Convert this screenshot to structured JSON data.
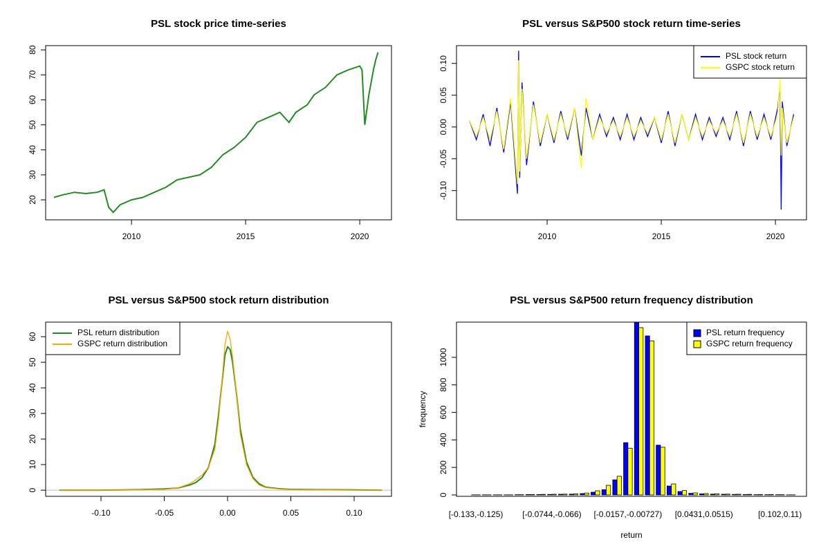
{
  "chart_data": [
    {
      "type": "line",
      "title": "PSL stock price time-series",
      "color": "#228b22",
      "x": [
        2006.6,
        2007,
        2007.5,
        2008,
        2008.5,
        2008.8,
        2009,
        2009.2,
        2009.5,
        2010,
        2010.5,
        2011,
        2011.5,
        2012,
        2012.5,
        2013,
        2013.5,
        2014,
        2014.5,
        2015,
        2015.5,
        2016,
        2016.5,
        2016.9,
        2017.2,
        2017.7,
        2018,
        2018.5,
        2019,
        2019.5,
        2020,
        2020.1,
        2020.22,
        2020.4,
        2020.6,
        2020.7,
        2020.8
      ],
      "values": [
        21,
        22,
        23,
        22.5,
        23,
        24,
        17,
        15,
        18,
        20,
        21,
        23,
        25,
        28,
        29,
        30,
        33,
        38,
        41,
        45,
        51,
        53,
        55,
        51,
        55,
        58,
        62,
        65,
        70,
        72,
        73.5,
        72,
        50,
        62,
        72,
        76,
        79
      ],
      "xlim": [
        2006.24,
        2021.39
      ],
      "xticks": [
        2010,
        2015,
        2020
      ],
      "ylim": [
        12,
        81.7
      ],
      "yticks": [
        20,
        30,
        40,
        50,
        60,
        70,
        80
      ]
    },
    {
      "type": "line",
      "title": "PSL versus S&P500 stock return time-series",
      "legend": "topright",
      "x": [
        2006.6,
        2006.9,
        2007.2,
        2007.5,
        2007.8,
        2008.1,
        2008.4,
        2008.7,
        2008.75,
        2008.8,
        2008.9,
        2009.1,
        2009.4,
        2009.7,
        2010.0,
        2010.3,
        2010.6,
        2010.9,
        2011.2,
        2011.5,
        2011.7,
        2012.0,
        2012.3,
        2012.6,
        2012.9,
        2013.2,
        2013.5,
        2013.8,
        2014.1,
        2014.4,
        2014.7,
        2015.0,
        2015.3,
        2015.6,
        2015.9,
        2016.2,
        2016.5,
        2016.8,
        2017.1,
        2017.4,
        2017.7,
        2018.0,
        2018.3,
        2018.6,
        2018.9,
        2019.2,
        2019.5,
        2019.8,
        2020.1,
        2020.2,
        2020.25,
        2020.3,
        2020.5,
        2020.8
      ],
      "series": [
        {
          "name": "PSL stock return",
          "color": "#0000ff",
          "values": [
            0.01,
            -0.02,
            0.02,
            -0.03,
            0.03,
            -0.04,
            0.04,
            -0.105,
            0.12,
            -0.08,
            0.07,
            -0.06,
            0.04,
            -0.03,
            0.02,
            -0.025,
            0.025,
            -0.02,
            0.03,
            -0.045,
            0.03,
            -0.02,
            0.02,
            -0.015,
            0.015,
            -0.02,
            0.02,
            -0.02,
            0.015,
            -0.015,
            0.015,
            -0.025,
            0.025,
            -0.03,
            0.02,
            -0.02,
            0.02,
            -0.02,
            0.015,
            -0.015,
            0.015,
            -0.02,
            0.025,
            -0.03,
            0.025,
            -0.02,
            0.02,
            -0.02,
            0.03,
            0.065,
            -0.13,
            0.04,
            -0.03,
            0.02
          ]
        },
        {
          "name": "GSPC stock return",
          "color": "#ffff00",
          "values": [
            0.01,
            -0.015,
            0.015,
            -0.02,
            0.025,
            -0.035,
            0.045,
            -0.09,
            0.105,
            -0.07,
            0.06,
            -0.05,
            0.035,
            -0.025,
            0.02,
            -0.02,
            0.02,
            -0.015,
            0.03,
            -0.065,
            0.045,
            -0.02,
            0.015,
            -0.01,
            0.01,
            -0.015,
            0.015,
            -0.015,
            0.01,
            -0.01,
            0.015,
            -0.02,
            0.02,
            -0.025,
            0.02,
            -0.02,
            0.015,
            -0.015,
            0.01,
            -0.01,
            0.01,
            -0.015,
            0.02,
            -0.025,
            0.02,
            -0.015,
            0.015,
            -0.015,
            0.02,
            0.075,
            -0.045,
            0.03,
            -0.025,
            0.015
          ]
        }
      ],
      "xlim": [
        2006.03,
        2021.36
      ],
      "xticks": [
        2010,
        2015,
        2020
      ],
      "ylim": [
        -0.146,
        0.128
      ],
      "yticks": [
        {
          "value": -0.1,
          "label": "-0.10"
        },
        -0.05,
        {
          "value": 0,
          "label": "0.00"
        },
        0.05,
        {
          "value": 0.1,
          "label": "0.10"
        }
      ]
    },
    {
      "type": "line",
      "title": "PSL versus S&P500 stock return distribution",
      "legend": "topleft",
      "x": [
        -0.133,
        -0.1,
        -0.07,
        -0.05,
        -0.04,
        -0.03,
        -0.025,
        -0.02,
        -0.015,
        -0.01,
        -0.007,
        -0.004,
        -0.002,
        0,
        0.002,
        0.004,
        0.007,
        0.01,
        0.015,
        0.02,
        0.025,
        0.03,
        0.04,
        0.05,
        0.07,
        0.1,
        0.122
      ],
      "series": [
        {
          "name": "PSL return distribution",
          "color": "#228b22",
          "values": [
            0,
            0,
            0.2,
            0.5,
            0.8,
            2,
            3,
            5,
            9,
            18,
            30,
            44,
            53,
            56,
            55,
            50,
            38,
            24,
            11,
            5,
            2.5,
            1.2,
            0.6,
            0.3,
            0.2,
            0.1,
            0
          ]
        },
        {
          "name": "GSPC return distribution",
          "color": "#ffa500",
          "values": [
            0,
            0,
            0.1,
            0.3,
            0.8,
            2.5,
            4,
            6,
            9,
            16,
            28,
            45,
            57,
            62,
            59,
            52,
            38,
            22,
            10,
            4.5,
            2,
            1,
            0.5,
            0.2,
            0.1,
            0,
            0
          ]
        }
      ],
      "xlim": [
        -0.1437,
        0.1295
      ],
      "xticks": [
        {
          "value": -0.1,
          "label": "-0.10"
        },
        -0.05,
        {
          "value": 0,
          "label": "0.00"
        },
        0.05,
        {
          "value": 0.1,
          "label": "0.10"
        }
      ],
      "ylim": [
        -2.4,
        65.7
      ],
      "yticks": [
        0,
        10,
        20,
        30,
        40,
        50,
        60
      ]
    },
    {
      "type": "bar",
      "title": "PSL versus S&P500 return frequency distribution",
      "legend": "topright",
      "x_label": "return",
      "y_label": "frequency",
      "categories": [
        "[-0.133,-0.125)",
        null,
        null,
        null,
        null,
        null,
        null,
        "[-0.0744,-0.066)",
        null,
        null,
        null,
        null,
        null,
        null,
        "[-0.0157,-0.00727)",
        null,
        null,
        null,
        null,
        null,
        null,
        "[0.0431,0.0515)",
        null,
        null,
        null,
        null,
        null,
        null,
        "[0.102,0.11)",
        null
      ],
      "series": [
        {
          "name": "PSL return frequency",
          "color": "#0000ff",
          "values": [
            1,
            1,
            1,
            1,
            2,
            3,
            3,
            4,
            5,
            6,
            10,
            20,
            38,
            110,
            380,
            1290,
            1156,
            362,
            65,
            25,
            12,
            8,
            6,
            5,
            4,
            3,
            2,
            2,
            2,
            1
          ]
        },
        {
          "name": "GSPC return frequency",
          "color": "#ffff00",
          "values": [
            1,
            1,
            1,
            1,
            2,
            3,
            4,
            5,
            6,
            8,
            14,
            30,
            70,
            136,
            340,
            1216,
            1120,
            347,
            80,
            32,
            15,
            10,
            8,
            6,
            5,
            4,
            3,
            3,
            2,
            1
          ]
        }
      ],
      "ylim": [
        -10,
        1256
      ],
      "yticks": [
        0,
        200,
        400,
        600,
        800,
        1000
      ]
    }
  ]
}
